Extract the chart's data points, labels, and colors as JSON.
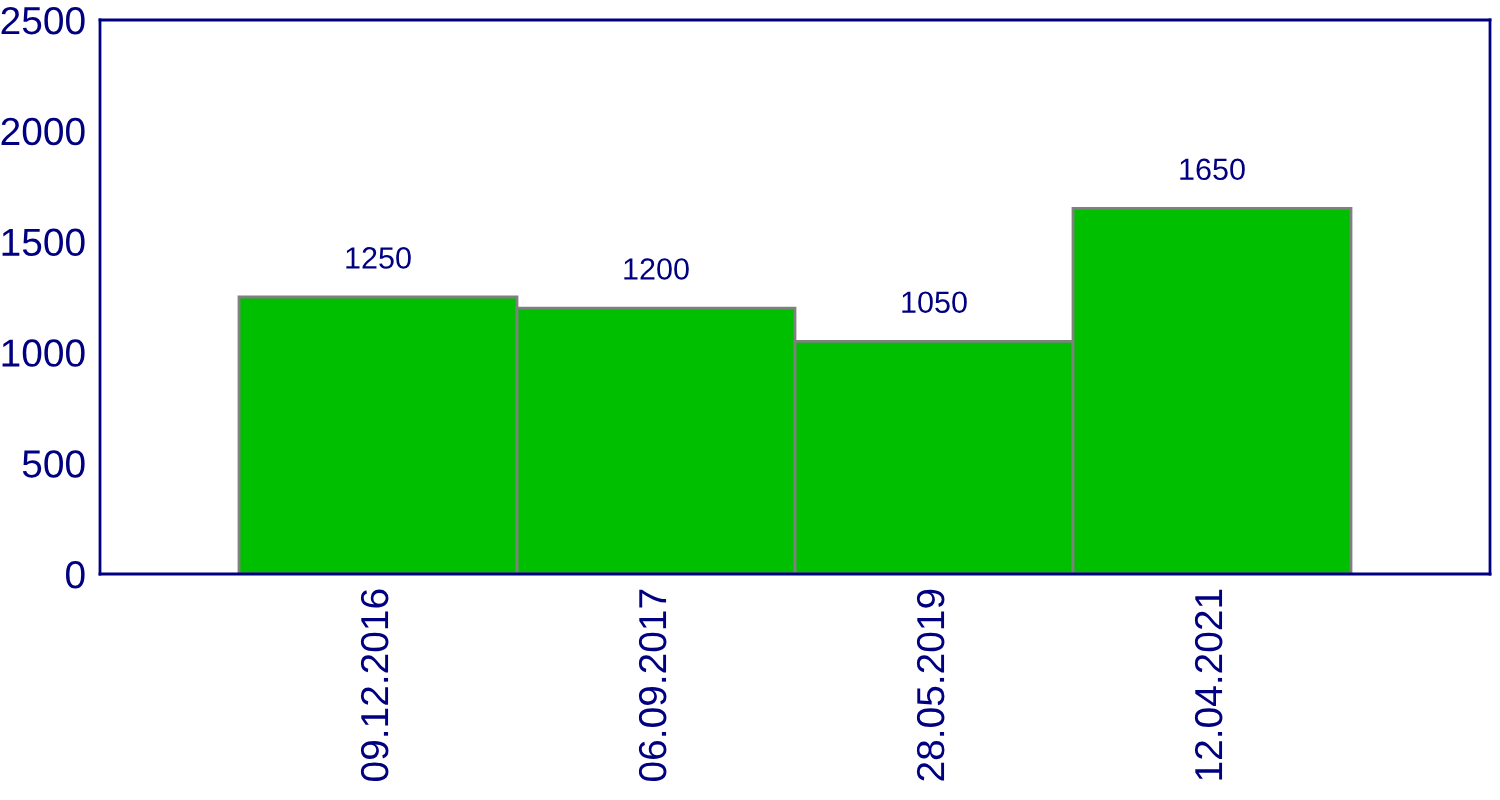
{
  "chart_data": {
    "type": "bar",
    "categories": [
      "09.12.2016",
      "06.09.2017",
      "28.05.2019",
      "12.04.2021"
    ],
    "values": [
      1250,
      1200,
      1050,
      1650
    ],
    "color": "#00bf00",
    "ylim": [
      0,
      2500
    ],
    "yticks": [
      0,
      500,
      1000,
      1500,
      2000,
      2500
    ],
    "grid": false,
    "data_labels": true
  }
}
